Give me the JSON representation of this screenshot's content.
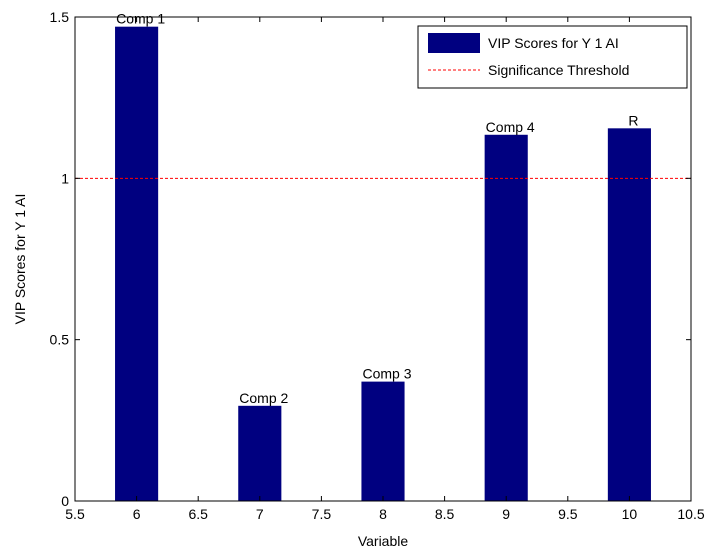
{
  "chart_data": {
    "type": "bar",
    "x": [
      6,
      7,
      8,
      9,
      10
    ],
    "series": [
      {
        "name": "VIP Scores for Y 1 AI",
        "values": [
          1.47,
          0.295,
          0.37,
          1.135,
          1.155
        ],
        "color": "#000080"
      }
    ],
    "threshold": {
      "name": "Significance Threshold",
      "value": 1,
      "color": "#ff0000",
      "style": "dashed"
    },
    "annotations": [
      {
        "text": "Comp 1",
        "x": 6,
        "y": 1.47
      },
      {
        "text": "Comp  2",
        "x": 7,
        "y": 0.295
      },
      {
        "text": "Comp 3",
        "x": 8,
        "y": 0.37
      },
      {
        "text": "Comp 4",
        "x": 9,
        "y": 1.135
      },
      {
        "text": "R",
        "x": 10,
        "y": 1.155
      }
    ],
    "xlabel": "Variable",
    "ylabel": "VIP Scores for Y 1 AI",
    "xlim": [
      5.5,
      10.5
    ],
    "ylim": [
      0,
      1.5
    ],
    "xticks": [
      "5.5",
      "6",
      "6.5",
      "7",
      "7.5",
      "8",
      "8.5",
      "9",
      "9.5",
      "10",
      "10.5"
    ],
    "yticks": [
      "0",
      "0.5",
      "1",
      "1.5"
    ],
    "bar_width": 0.35,
    "grid": false,
    "legend_position": "top-right"
  }
}
